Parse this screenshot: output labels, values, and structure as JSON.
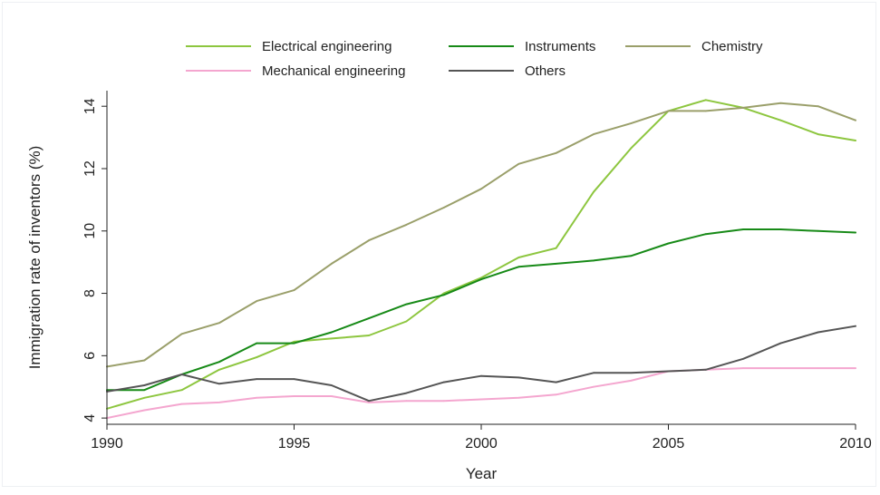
{
  "chart_data": {
    "type": "line",
    "xlabel": "Year",
    "ylabel": "Immigration rate of inventors (%)",
    "xlim": [
      1990,
      2010
    ],
    "ylim": [
      3.8,
      14.5
    ],
    "xticks": [
      1990,
      1995,
      2000,
      2005,
      2010
    ],
    "yticks": [
      4,
      6,
      8,
      10,
      12,
      14
    ],
    "grid": false,
    "legend_position": "top",
    "x": [
      1990,
      1991,
      1992,
      1993,
      1994,
      1995,
      1996,
      1997,
      1998,
      1999,
      2000,
      2001,
      2002,
      2003,
      2004,
      2005,
      2006,
      2007,
      2008,
      2009,
      2010
    ],
    "series": [
      {
        "name": "Electrical engineering",
        "color": "#8dc63f",
        "values": [
          4.3,
          4.65,
          4.9,
          5.55,
          5.95,
          6.45,
          6.55,
          6.65,
          7.1,
          8.0,
          8.5,
          9.15,
          9.45,
          11.25,
          12.65,
          13.85,
          14.2,
          13.95,
          13.55,
          13.1,
          12.9
        ]
      },
      {
        "name": "Instruments",
        "color": "#178a17",
        "values": [
          4.9,
          4.9,
          5.4,
          5.8,
          6.4,
          6.4,
          6.75,
          7.2,
          7.65,
          7.95,
          8.45,
          8.85,
          8.95,
          9.05,
          9.2,
          9.6,
          9.9,
          10.05,
          10.05,
          10.0,
          9.95
        ]
      },
      {
        "name": "Chemistry",
        "color": "#9a9f6a",
        "values": [
          5.65,
          5.85,
          6.7,
          7.05,
          7.75,
          8.1,
          8.95,
          9.7,
          10.2,
          10.75,
          11.35,
          12.15,
          12.5,
          13.1,
          13.45,
          13.85,
          13.85,
          13.95,
          14.1,
          14.0,
          13.55
        ]
      },
      {
        "name": "Mechanical engineering",
        "color": "#f4a6cf",
        "values": [
          4.0,
          4.25,
          4.45,
          4.5,
          4.65,
          4.7,
          4.7,
          4.5,
          4.55,
          4.55,
          4.6,
          4.65,
          4.75,
          5.0,
          5.2,
          5.5,
          5.55,
          5.6,
          5.6,
          5.6,
          5.6
        ]
      },
      {
        "name": "Others",
        "color": "#555555",
        "values": [
          4.85,
          5.05,
          5.4,
          5.1,
          5.25,
          5.25,
          5.05,
          4.55,
          4.8,
          5.15,
          5.35,
          5.3,
          5.15,
          5.45,
          5.45,
          5.5,
          5.55,
          5.9,
          6.4,
          6.75,
          6.95
        ]
      }
    ]
  }
}
